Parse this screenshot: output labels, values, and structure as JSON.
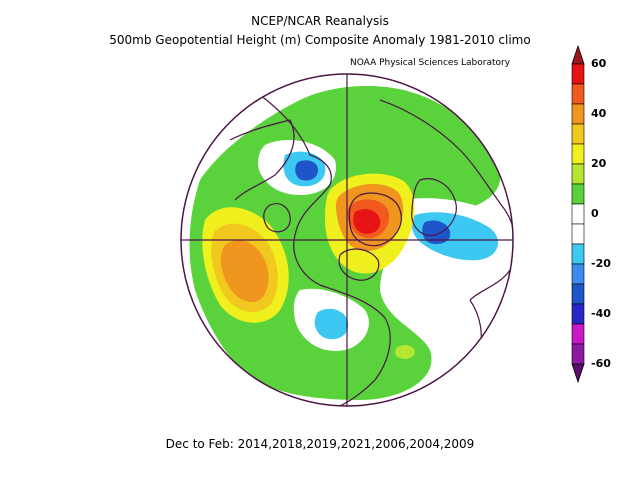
{
  "header": {
    "title": "NCEP/NCAR Reanalysis",
    "subtitle": "500mb Geopotential Height (m) Composite Anomaly 1981-2010 climo",
    "credit": "NOAA Physical Sciences Laboratory"
  },
  "caption": "Dec to Feb: 2014,2018,2019,2021,2006,2004,2009",
  "map": {
    "projection": "north-polar-stereographic",
    "graticule": "meridians every 90°",
    "anomalies": [
      {
        "region": "eastern North Pacific / Gulf of Alaska",
        "sign": "positive",
        "peak_m": 40
      },
      {
        "region": "Greenland / Arctic",
        "sign": "positive",
        "peak_m": 60
      },
      {
        "region": "eastern North America",
        "sign": "negative",
        "peak_m": -20
      },
      {
        "region": "northern Eurasia / Siberia",
        "sign": "negative",
        "peak_m": -20
      },
      {
        "region": "Europe / Mediterranean",
        "sign": "negative",
        "peak_m": -20
      },
      {
        "region": "North Atlantic / Azores",
        "sign": "positive",
        "peak_m": 20
      }
    ]
  },
  "colorbar": {
    "ticks": [
      "60",
      "40",
      "20",
      "0",
      "-20",
      "-40",
      "-60"
    ],
    "colors": [
      "#5a0f6e",
      "#8c1aa0",
      "#c818c8",
      "#2727c8",
      "#1e55c8",
      "#3c8cf0",
      "#3cc8f0",
      "#ffffff",
      "#ffffff",
      "#5ad23c",
      "#b4e632",
      "#f0f01e",
      "#f0c81e",
      "#f0961e",
      "#f05a1e",
      "#e61414",
      "#a0141e"
    ]
  }
}
